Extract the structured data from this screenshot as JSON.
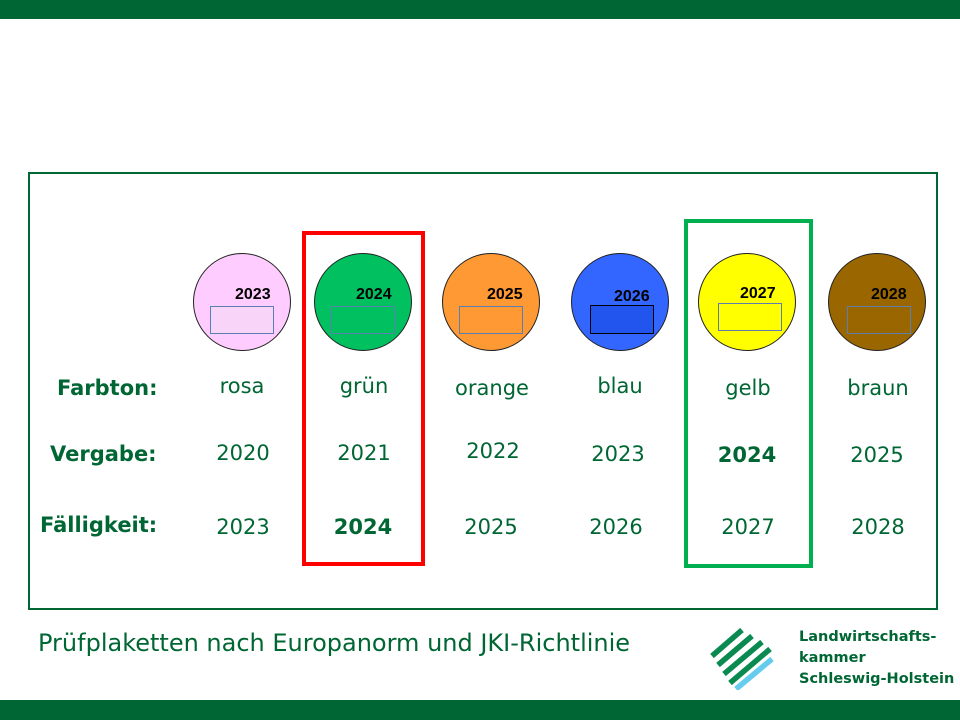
{
  "colors": {
    "brand": "#006633",
    "highlight_red": "#ff0000",
    "highlight_green": "#00b050"
  },
  "row_labels": {
    "farbton": "Farbton:",
    "vergabe": "Vergabe:",
    "faelligkeit": "Fälligkeit:"
  },
  "plaketten": [
    {
      "year": "2023",
      "farbton": "rosa",
      "vergabe": "2020",
      "faelligkeit": "2023",
      "color": "#ffccff"
    },
    {
      "year": "2024",
      "farbton": "grün",
      "vergabe": "2021",
      "faelligkeit": "2024",
      "color": "#00c060"
    },
    {
      "year": "2025",
      "farbton": "orange",
      "vergabe": "2022",
      "faelligkeit": "2025",
      "color": "#ff9933"
    },
    {
      "year": "2026",
      "farbton": "blau",
      "vergabe": "2023",
      "faelligkeit": "2026",
      "color": "#3366ff"
    },
    {
      "year": "2027",
      "farbton": "gelb",
      "vergabe": "2024",
      "faelligkeit": "2027",
      "color": "#ffff00"
    },
    {
      "year": "2028",
      "farbton": "braun",
      "vergabe": "2025",
      "faelligkeit": "2028",
      "color": "#996600"
    }
  ],
  "caption": "Prüfplaketten nach Europanorm und JKI-Richtlinie",
  "organization": {
    "line1": "Landwirtschafts-",
    "line2": "kammer",
    "line3": "Schleswig-Holstein"
  }
}
